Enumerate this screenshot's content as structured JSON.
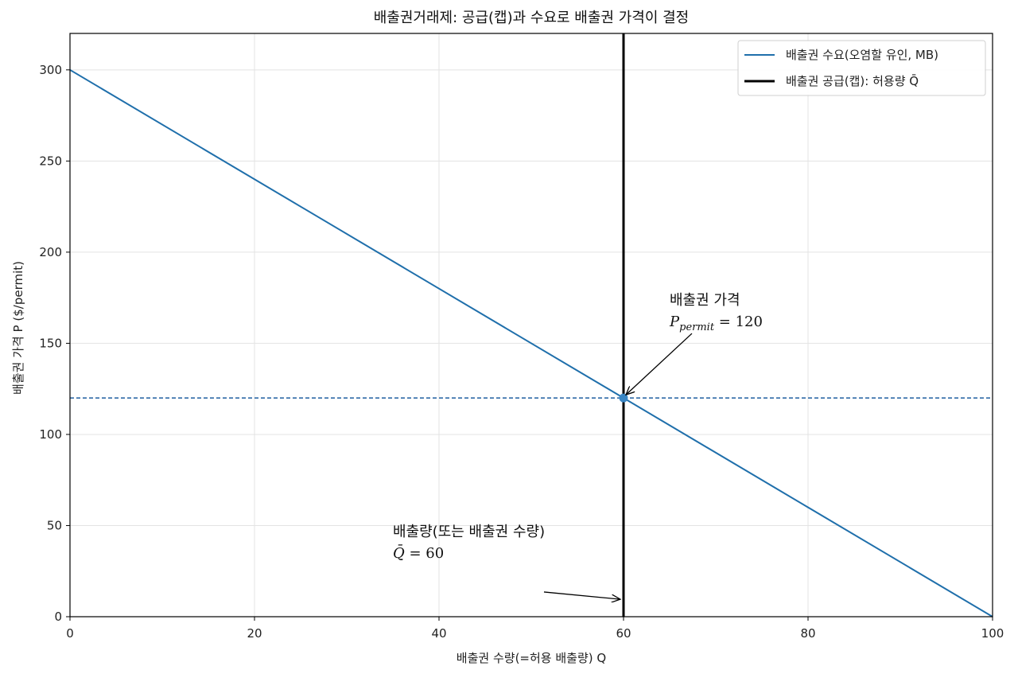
{
  "chart_data": {
    "type": "line",
    "title": "배출권거래제: 공급(캡)과 수요로 배출권 가격이 결정",
    "xlabel": "배출권 수량(=허용 배출량) Q",
    "ylabel": "배출권 가격 P ($/permit)",
    "xlim": [
      0,
      100
    ],
    "ylim": [
      0,
      320
    ],
    "xticks": [
      0,
      20,
      40,
      60,
      80,
      100
    ],
    "yticks": [
      0,
      50,
      100,
      150,
      200,
      250,
      300
    ],
    "grid": true,
    "legend_position": "top-right",
    "series": [
      {
        "name": "배출권 수요(오염할 유인, MB)",
        "kind": "line",
        "color": "#1f6fab",
        "x": [
          0,
          100
        ],
        "y": [
          300,
          0
        ]
      },
      {
        "name": "배출권 공급(캡): 허용량 Q̄",
        "kind": "vertical-line",
        "color": "#000000",
        "x": [
          60,
          60
        ],
        "y": [
          0,
          320
        ]
      }
    ],
    "reference_lines": [
      {
        "kind": "horizontal-dashed",
        "y": 120,
        "color": "#1f5fa0"
      }
    ],
    "points": [
      {
        "x": 60,
        "y": 120,
        "color": "#3a86c4"
      }
    ],
    "annotations": [
      {
        "line1": "배출권 가격",
        "math_var": "P",
        "math_sub": "permit",
        "math_rest": " = 120",
        "text_x": 65,
        "text_y": 165,
        "arrow_to": [
          60,
          120
        ]
      },
      {
        "line1": "배출량(또는 배출권 수량)",
        "math_var": "Q̄",
        "math_sub": "",
        "math_rest": " = 60",
        "text_x": 35,
        "text_y": 38,
        "arrow_to": [
          60,
          10
        ]
      }
    ]
  }
}
